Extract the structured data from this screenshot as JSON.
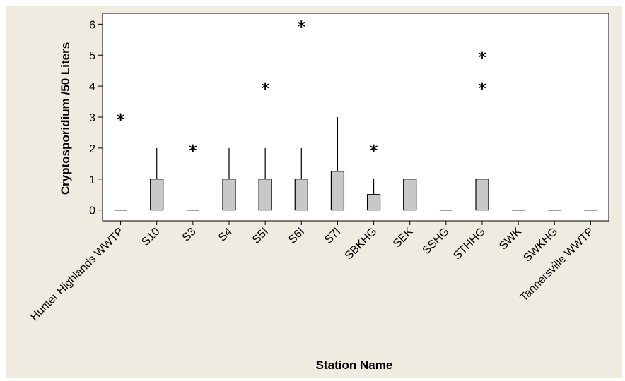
{
  "chart_data": {
    "type": "box",
    "xlabel": "Station Name",
    "ylabel": "Cryptosporidium /50 Liters",
    "ylim": [
      -0.35,
      6.35
    ],
    "yticks": [
      0,
      1,
      2,
      3,
      4,
      5,
      6
    ],
    "grid": false,
    "categories": [
      "Hunter Highlands WWTP",
      "S10",
      "S3",
      "S4",
      "S5I",
      "S6I",
      "S7I",
      "SBKHG",
      "SEK",
      "SSHG",
      "STHHG",
      "SWK",
      "SWKHG",
      "Tannersville WWTP"
    ],
    "boxes": [
      {
        "q1": 0,
        "q3": 0,
        "whisker_low": 0,
        "whisker_high": 0,
        "outliers": [
          3
        ]
      },
      {
        "q1": 0,
        "q3": 1,
        "whisker_low": 0,
        "whisker_high": 2,
        "outliers": []
      },
      {
        "q1": 0,
        "q3": 0,
        "whisker_low": 0,
        "whisker_high": 0,
        "outliers": [
          2
        ]
      },
      {
        "q1": 0,
        "q3": 1,
        "whisker_low": 0,
        "whisker_high": 2,
        "outliers": []
      },
      {
        "q1": 0,
        "q3": 1,
        "whisker_low": 0,
        "whisker_high": 2,
        "outliers": [
          4
        ]
      },
      {
        "q1": 0,
        "q3": 1,
        "whisker_low": 0,
        "whisker_high": 2,
        "outliers": [
          6
        ]
      },
      {
        "q1": 0,
        "q3": 1.25,
        "whisker_low": 0,
        "whisker_high": 3,
        "outliers": []
      },
      {
        "q1": 0,
        "q3": 0.5,
        "whisker_low": 0,
        "whisker_high": 1,
        "outliers": [
          2
        ]
      },
      {
        "q1": 0,
        "q3": 1,
        "whisker_low": 0,
        "whisker_high": 1,
        "outliers": []
      },
      {
        "q1": 0,
        "q3": 0,
        "whisker_low": 0,
        "whisker_high": 0,
        "outliers": []
      },
      {
        "q1": 0,
        "q3": 1,
        "whisker_low": 0,
        "whisker_high": 1,
        "outliers": [
          4,
          5
        ]
      },
      {
        "q1": 0,
        "q3": 0,
        "whisker_low": 0,
        "whisker_high": 0,
        "outliers": []
      },
      {
        "q1": 0,
        "q3": 0,
        "whisker_low": 0,
        "whisker_high": 0,
        "outliers": []
      },
      {
        "q1": 0,
        "q3": 0,
        "whisker_low": 0,
        "whisker_high": 0,
        "outliers": []
      }
    ],
    "outlier_symbol": "*",
    "colors": {
      "box_fill": "#c8c8c8",
      "stroke": "#000000",
      "background": "#f0ebe0",
      "plot_area": "#ffffff"
    }
  }
}
